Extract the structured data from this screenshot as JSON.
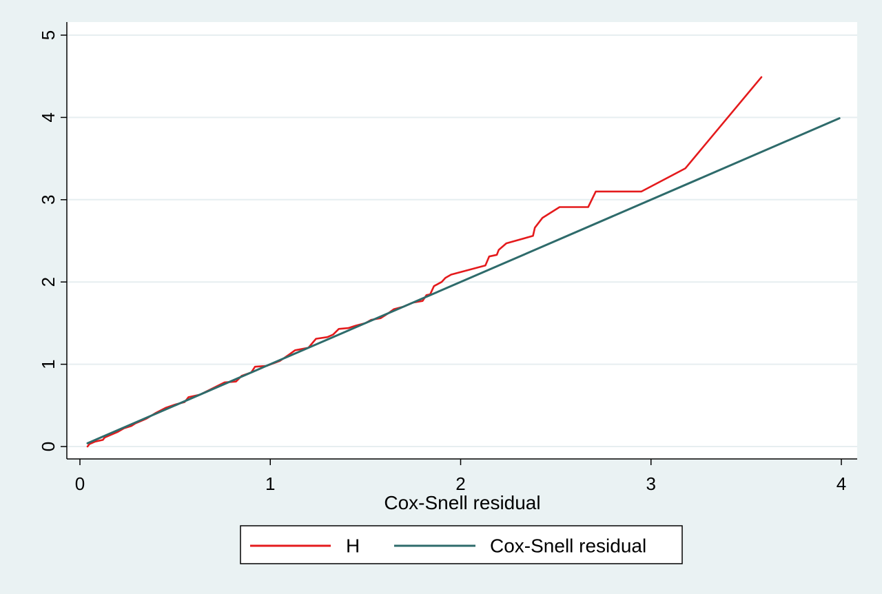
{
  "chart_data": {
    "type": "line",
    "title": "",
    "xlabel": "Cox-Snell residual",
    "ylabel": "",
    "xlim": [
      0,
      4
    ],
    "ylim": [
      0,
      5
    ],
    "x_ticks": [
      "0",
      "1",
      "2",
      "3",
      "4"
    ],
    "y_ticks": [
      "0",
      "1",
      "2",
      "3",
      "4",
      "5"
    ],
    "grid": true,
    "legend_position": "bottom",
    "series": [
      {
        "name": "H",
        "color": "#e41a1c",
        "points": [
          [
            0.04,
            0.0
          ],
          [
            0.05,
            0.03
          ],
          [
            0.08,
            0.06
          ],
          [
            0.12,
            0.08
          ],
          [
            0.13,
            0.11
          ],
          [
            0.16,
            0.14
          ],
          [
            0.2,
            0.18
          ],
          [
            0.23,
            0.22
          ],
          [
            0.27,
            0.25
          ],
          [
            0.29,
            0.28
          ],
          [
            0.32,
            0.31
          ],
          [
            0.35,
            0.34
          ],
          [
            0.4,
            0.41
          ],
          [
            0.45,
            0.47
          ],
          [
            0.5,
            0.51
          ],
          [
            0.55,
            0.54
          ],
          [
            0.57,
            0.6
          ],
          [
            0.63,
            0.63
          ],
          [
            0.7,
            0.71
          ],
          [
            0.76,
            0.78
          ],
          [
            0.82,
            0.79
          ],
          [
            0.85,
            0.86
          ],
          [
            0.9,
            0.9
          ],
          [
            0.92,
            0.97
          ],
          [
            0.98,
            0.98
          ],
          [
            1.05,
            1.04
          ],
          [
            1.1,
            1.12
          ],
          [
            1.13,
            1.17
          ],
          [
            1.2,
            1.2
          ],
          [
            1.24,
            1.31
          ],
          [
            1.3,
            1.33
          ],
          [
            1.33,
            1.36
          ],
          [
            1.36,
            1.43
          ],
          [
            1.41,
            1.44
          ],
          [
            1.45,
            1.47
          ],
          [
            1.5,
            1.5
          ],
          [
            1.53,
            1.54
          ],
          [
            1.58,
            1.56
          ],
          [
            1.62,
            1.62
          ],
          [
            1.65,
            1.67
          ],
          [
            1.7,
            1.7
          ],
          [
            1.75,
            1.75
          ],
          [
            1.8,
            1.77
          ],
          [
            1.82,
            1.84
          ],
          [
            1.84,
            1.85
          ],
          [
            1.86,
            1.95
          ],
          [
            1.9,
            2.0
          ],
          [
            1.92,
            2.05
          ],
          [
            1.95,
            2.09
          ],
          [
            2.13,
            2.2
          ],
          [
            2.15,
            2.31
          ],
          [
            2.19,
            2.33
          ],
          [
            2.2,
            2.39
          ],
          [
            2.24,
            2.47
          ],
          [
            2.38,
            2.56
          ],
          [
            2.39,
            2.66
          ],
          [
            2.43,
            2.78
          ],
          [
            2.52,
            2.91
          ],
          [
            2.67,
            2.91
          ],
          [
            2.71,
            3.1
          ],
          [
            2.95,
            3.1
          ],
          [
            3.18,
            3.38
          ],
          [
            3.58,
            4.49
          ]
        ]
      },
      {
        "name": "Cox-Snell residual",
        "color": "#2e6b6b",
        "points": [
          [
            0.04,
            0.04
          ],
          [
            3.99,
            3.99
          ]
        ]
      }
    ]
  }
}
